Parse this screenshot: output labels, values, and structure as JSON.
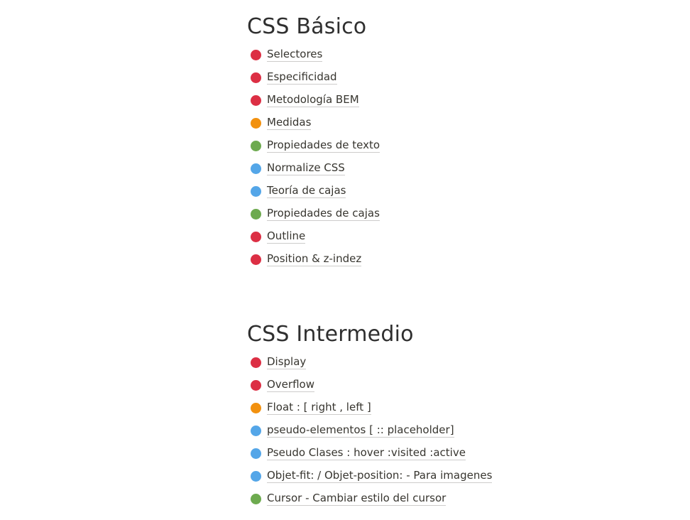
{
  "colors": {
    "red": "#dc2f44",
    "orange": "#f2910f",
    "green": "#6daa4f",
    "blue": "#54a6e8"
  },
  "sections": [
    {
      "title": "CSS Básico",
      "items": [
        {
          "label": "Selectores",
          "color": "#dc2f44"
        },
        {
          "label": "Especificidad",
          "color": "#dc2f44"
        },
        {
          "label": "Metodología BEM",
          "color": "#dc2f44"
        },
        {
          "label": "Medidas",
          "color": "#f2910f"
        },
        {
          "label": "Propiedades de texto",
          "color": "#6daa4f"
        },
        {
          "label": "Normalize CSS",
          "color": "#54a6e8"
        },
        {
          "label": "Teoría de cajas",
          "color": "#54a6e8"
        },
        {
          "label": "Propiedades de cajas",
          "color": "#6daa4f"
        },
        {
          "label": "Outline",
          "color": "#dc2f44"
        },
        {
          "label": "Position & z-indez",
          "color": "#dc2f44"
        }
      ]
    },
    {
      "title": "CSS Intermedio",
      "items": [
        {
          "label": "Display",
          "color": "#dc2f44"
        },
        {
          "label": "Overflow",
          "color": "#dc2f44"
        },
        {
          "label": "Float : [ right , left ]",
          "color": "#f2910f"
        },
        {
          "label": "pseudo-elementos [ :: placeholder]",
          "color": "#54a6e8"
        },
        {
          "label": "Pseudo Clases : hover :visited :active",
          "color": "#54a6e8"
        },
        {
          "label": "Objet-fit: / Objet-position: - Para imagenes",
          "color": "#54a6e8"
        },
        {
          "label": "Cursor - Cambiar estilo del cursor",
          "color": "#6daa4f"
        }
      ]
    }
  ]
}
